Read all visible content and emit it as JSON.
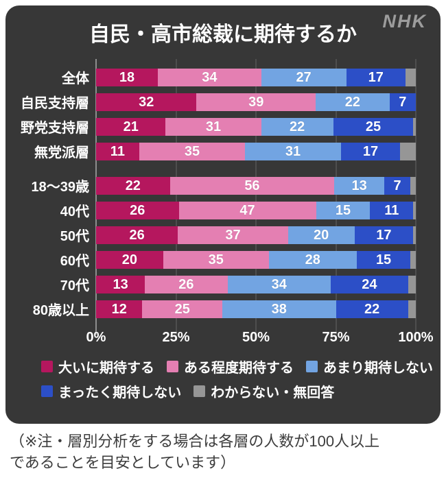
{
  "card": {
    "logo": "NHK",
    "background": "#373737"
  },
  "chart_data": {
    "type": "bar",
    "orientation": "horizontal",
    "stacked": true,
    "title": "自民・高市総裁に期待するか",
    "xlim": [
      0,
      100
    ],
    "x_ticks": [
      "0%",
      "25%",
      "50%",
      "75%",
      "100%"
    ],
    "tick_positions": [
      0,
      25,
      50,
      75,
      100
    ],
    "grid": true,
    "legend_position": "bottom",
    "series_names": [
      "大いに期待する",
      "ある程度期待する",
      "あまり期待しない",
      "まったく期待しない",
      "わからない・無回答"
    ],
    "colors": [
      "#b5175e",
      "#e47fb2",
      "#72a4e2",
      "#2c4fc7",
      "#969696"
    ],
    "legend_rows": [
      [
        0,
        1,
        2
      ],
      [
        3,
        4
      ]
    ],
    "rows": [
      {
        "label": "全体",
        "gap_before": false,
        "values": [
          18,
          34,
          27,
          17,
          4
        ]
      },
      {
        "label": "自民支持層",
        "gap_before": false,
        "values": [
          32,
          39,
          22,
          7,
          0
        ]
      },
      {
        "label": "野党支持層",
        "gap_before": false,
        "values": [
          21,
          31,
          22,
          25,
          1
        ]
      },
      {
        "label": "無党派層",
        "gap_before": false,
        "values": [
          11,
          35,
          31,
          17,
          6
        ]
      },
      {
        "label": "18〜39歳",
        "gap_before": true,
        "values": [
          22,
          56,
          13,
          7,
          2
        ]
      },
      {
        "label": "40代",
        "gap_before": false,
        "values": [
          26,
          47,
          15,
          11,
          1
        ]
      },
      {
        "label": "50代",
        "gap_before": false,
        "values": [
          26,
          37,
          20,
          17,
          1
        ]
      },
      {
        "label": "60代",
        "gap_before": false,
        "values": [
          20,
          35,
          28,
          15,
          2
        ]
      },
      {
        "label": "70代",
        "gap_before": false,
        "values": [
          13,
          26,
          34,
          24,
          3
        ]
      },
      {
        "label": "80歳以上",
        "gap_before": false,
        "values": [
          12,
          25,
          38,
          22,
          3
        ]
      }
    ],
    "value_labels_shown_for_series": [
      0,
      1,
      2,
      3
    ]
  },
  "footer": {
    "note_line1": "（※注・層別分析をする場合は各層の人数が100人以上",
    "note_line2": "であることを目安としています）"
  }
}
